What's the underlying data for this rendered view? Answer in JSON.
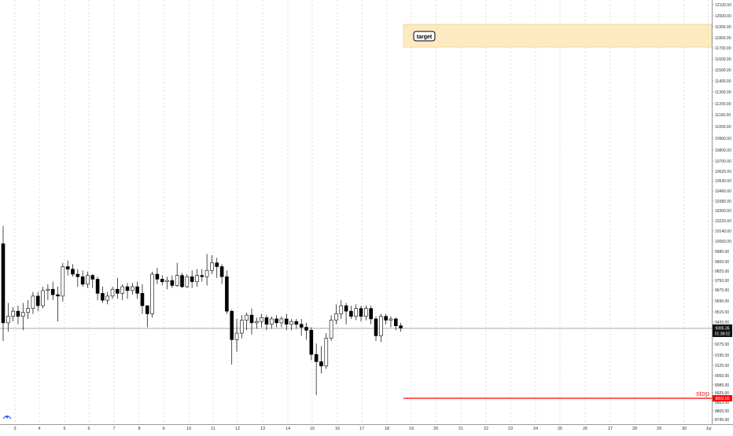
{
  "chart_data": {
    "type": "candlestick",
    "price_axis": {
      "ticks": [
        "12100.00",
        "12000.00",
        "11900.00",
        "11800.00",
        "11700.00",
        "11600.00",
        "11500.00",
        "11400.00",
        "11300.00",
        "11200.00",
        "11100.00",
        "11000.00",
        "10900.00",
        "10800.00",
        "10700.00",
        "10620.00",
        "10540.00",
        "10460.00",
        "10380.00",
        "10300.00",
        "10220.00",
        "10140.00",
        "10060.00",
        "9980.00",
        "9900.00",
        "9825.00",
        "9750.00",
        "9675.00",
        "9595.00",
        "9515.00",
        "9435.00",
        "9355.00",
        "9275.00",
        "9195.00",
        "9125.00",
        "9055.00",
        "8985.00",
        "8925.00",
        "8863.00",
        "8805.00",
        "8745.00"
      ],
      "tick_y": [
        6,
        20,
        34,
        48,
        61,
        75,
        89,
        103,
        117,
        132,
        146,
        161,
        176,
        191,
        205,
        218,
        230,
        243,
        256,
        268,
        281,
        294,
        307,
        320,
        333,
        345,
        357,
        369,
        383,
        397,
        410,
        425,
        438,
        452,
        465,
        478,
        490,
        500,
        512,
        523,
        534
      ]
    },
    "time_axis": {
      "labels": [
        "3",
        "4",
        "5",
        "6",
        "7",
        "8",
        "9",
        "10",
        "11",
        "12",
        "13",
        "14",
        "15",
        "16",
        "17",
        "18",
        "19",
        "20",
        "21",
        "22",
        "23",
        "24",
        "25",
        "26",
        "27",
        "28",
        "29",
        "30",
        "Jul"
      ],
      "label_x": [
        19,
        50,
        82,
        113,
        145,
        177,
        208,
        240,
        271,
        302,
        334,
        366,
        397,
        429,
        460,
        492,
        523,
        554,
        586,
        618,
        649,
        681,
        712,
        744,
        776,
        807,
        838,
        870,
        901
      ]
    },
    "current_price": {
      "value": "9395.35",
      "countdown": "01:38:02"
    },
    "stop": {
      "label": "stop",
      "price": "8893.00"
    },
    "target": {
      "label": "target",
      "zone_top": "11920.00",
      "zone_bottom": "11720.00"
    },
    "colors": {
      "up": "#ffffff",
      "down": "#000000",
      "wick": "#000000",
      "stop_line": "#ff0000",
      "target_fill": "#fcebc0",
      "target_border": "#e7c97a",
      "grid": "#c4c4c4"
    },
    "candles": [
      {
        "o": 10040,
        "h": 10180,
        "l": 9300,
        "c": 9430
      },
      {
        "o": 9430,
        "h": 9580,
        "l": 9370,
        "c": 9480
      },
      {
        "o": 9480,
        "h": 9550,
        "l": 9440,
        "c": 9520
      },
      {
        "o": 9520,
        "h": 9560,
        "l": 9420,
        "c": 9480
      },
      {
        "o": 9480,
        "h": 9580,
        "l": 9380,
        "c": 9510
      },
      {
        "o": 9510,
        "h": 9600,
        "l": 9460,
        "c": 9540
      },
      {
        "o": 9540,
        "h": 9660,
        "l": 9500,
        "c": 9630
      },
      {
        "o": 9630,
        "h": 9660,
        "l": 9520,
        "c": 9560
      },
      {
        "o": 9560,
        "h": 9700,
        "l": 9540,
        "c": 9670
      },
      {
        "o": 9670,
        "h": 9720,
        "l": 9600,
        "c": 9680
      },
      {
        "o": 9680,
        "h": 9740,
        "l": 9600,
        "c": 9640
      },
      {
        "o": 9640,
        "h": 9700,
        "l": 9440,
        "c": 9630
      },
      {
        "o": 9630,
        "h": 9890,
        "l": 9590,
        "c": 9860
      },
      {
        "o": 9860,
        "h": 9910,
        "l": 9790,
        "c": 9840
      },
      {
        "o": 9840,
        "h": 9880,
        "l": 9780,
        "c": 9800
      },
      {
        "o": 9800,
        "h": 9840,
        "l": 9700,
        "c": 9780
      },
      {
        "o": 9780,
        "h": 9830,
        "l": 9700,
        "c": 9720
      },
      {
        "o": 9720,
        "h": 9820,
        "l": 9690,
        "c": 9790
      },
      {
        "o": 9790,
        "h": 9800,
        "l": 9690,
        "c": 9760
      },
      {
        "o": 9760,
        "h": 9780,
        "l": 9600,
        "c": 9650
      },
      {
        "o": 9650,
        "h": 9700,
        "l": 9580,
        "c": 9600
      },
      {
        "o": 9600,
        "h": 9660,
        "l": 9570,
        "c": 9630
      },
      {
        "o": 9630,
        "h": 9700,
        "l": 9610,
        "c": 9680
      },
      {
        "o": 9680,
        "h": 9770,
        "l": 9610,
        "c": 9650
      },
      {
        "o": 9650,
        "h": 9720,
        "l": 9600,
        "c": 9700
      },
      {
        "o": 9700,
        "h": 9730,
        "l": 9610,
        "c": 9670
      },
      {
        "o": 9670,
        "h": 9730,
        "l": 9640,
        "c": 9700
      },
      {
        "o": 9700,
        "h": 9740,
        "l": 9610,
        "c": 9650
      },
      {
        "o": 9650,
        "h": 9720,
        "l": 9500,
        "c": 9560
      },
      {
        "o": 9560,
        "h": 9560,
        "l": 9400,
        "c": 9500
      },
      {
        "o": 9500,
        "h": 9820,
        "l": 9470,
        "c": 9800
      },
      {
        "o": 9800,
        "h": 9850,
        "l": 9720,
        "c": 9760
      },
      {
        "o": 9760,
        "h": 9790,
        "l": 9710,
        "c": 9740
      },
      {
        "o": 9740,
        "h": 9780,
        "l": 9680,
        "c": 9750
      },
      {
        "o": 9750,
        "h": 9790,
        "l": 9690,
        "c": 9710
      },
      {
        "o": 9710,
        "h": 9890,
        "l": 9700,
        "c": 9790
      },
      {
        "o": 9790,
        "h": 9810,
        "l": 9690,
        "c": 9700
      },
      {
        "o": 9700,
        "h": 9800,
        "l": 9690,
        "c": 9780
      },
      {
        "o": 9780,
        "h": 9830,
        "l": 9690,
        "c": 9740
      },
      {
        "o": 9740,
        "h": 9840,
        "l": 9700,
        "c": 9790
      },
      {
        "o": 9790,
        "h": 9840,
        "l": 9740,
        "c": 9780
      },
      {
        "o": 9780,
        "h": 9960,
        "l": 9710,
        "c": 9830
      },
      {
        "o": 9830,
        "h": 9950,
        "l": 9800,
        "c": 9890
      },
      {
        "o": 9890,
        "h": 9930,
        "l": 9770,
        "c": 9860
      },
      {
        "o": 9860,
        "h": 9880,
        "l": 9720,
        "c": 9780
      },
      {
        "o": 9780,
        "h": 9830,
        "l": 9500,
        "c": 9520
      },
      {
        "o": 9520,
        "h": 9530,
        "l": 9130,
        "c": 9310
      },
      {
        "o": 9310,
        "h": 9460,
        "l": 9220,
        "c": 9360
      },
      {
        "o": 9360,
        "h": 9490,
        "l": 9320,
        "c": 9450
      },
      {
        "o": 9450,
        "h": 9510,
        "l": 9380,
        "c": 9490
      },
      {
        "o": 9490,
        "h": 9540,
        "l": 9350,
        "c": 9430
      },
      {
        "o": 9430,
        "h": 9470,
        "l": 9390,
        "c": 9440
      },
      {
        "o": 9440,
        "h": 9500,
        "l": 9400,
        "c": 9470
      },
      {
        "o": 9470,
        "h": 9490,
        "l": 9380,
        "c": 9420
      },
      {
        "o": 9420,
        "h": 9480,
        "l": 9390,
        "c": 9460
      },
      {
        "o": 9460,
        "h": 9490,
        "l": 9400,
        "c": 9430
      },
      {
        "o": 9430,
        "h": 9480,
        "l": 9400,
        "c": 9460
      },
      {
        "o": 9460,
        "h": 9500,
        "l": 9380,
        "c": 9420
      },
      {
        "o": 9420,
        "h": 9460,
        "l": 9380,
        "c": 9440
      },
      {
        "o": 9440,
        "h": 9460,
        "l": 9390,
        "c": 9420
      },
      {
        "o": 9420,
        "h": 9460,
        "l": 9340,
        "c": 9400
      },
      {
        "o": 9400,
        "h": 9430,
        "l": 9310,
        "c": 9380
      },
      {
        "o": 9380,
        "h": 9400,
        "l": 9160,
        "c": 9200
      },
      {
        "o": 9200,
        "h": 9280,
        "l": 8910,
        "c": 9150
      },
      {
        "o": 9150,
        "h": 9260,
        "l": 9070,
        "c": 9120
      },
      {
        "o": 9120,
        "h": 9360,
        "l": 9100,
        "c": 9320
      },
      {
        "o": 9320,
        "h": 9490,
        "l": 9300,
        "c": 9450
      },
      {
        "o": 9450,
        "h": 9570,
        "l": 9420,
        "c": 9500
      },
      {
        "o": 9500,
        "h": 9600,
        "l": 9460,
        "c": 9560
      },
      {
        "o": 9560,
        "h": 9580,
        "l": 9420,
        "c": 9520
      },
      {
        "o": 9520,
        "h": 9560,
        "l": 9460,
        "c": 9480
      },
      {
        "o": 9480,
        "h": 9570,
        "l": 9450,
        "c": 9540
      },
      {
        "o": 9540,
        "h": 9560,
        "l": 9440,
        "c": 9480
      },
      {
        "o": 9480,
        "h": 9560,
        "l": 9450,
        "c": 9540
      },
      {
        "o": 9540,
        "h": 9560,
        "l": 9420,
        "c": 9460
      },
      {
        "o": 9460,
        "h": 9480,
        "l": 9300,
        "c": 9340
      },
      {
        "o": 9340,
        "h": 9500,
        "l": 9290,
        "c": 9480
      },
      {
        "o": 9480,
        "h": 9500,
        "l": 9420,
        "c": 9450
      },
      {
        "o": 9450,
        "h": 9480,
        "l": 9400,
        "c": 9460
      },
      {
        "o": 9460,
        "h": 9470,
        "l": 9380,
        "c": 9410
      },
      {
        "o": 9410,
        "h": 9430,
        "l": 9370,
        "c": 9395
      }
    ]
  }
}
